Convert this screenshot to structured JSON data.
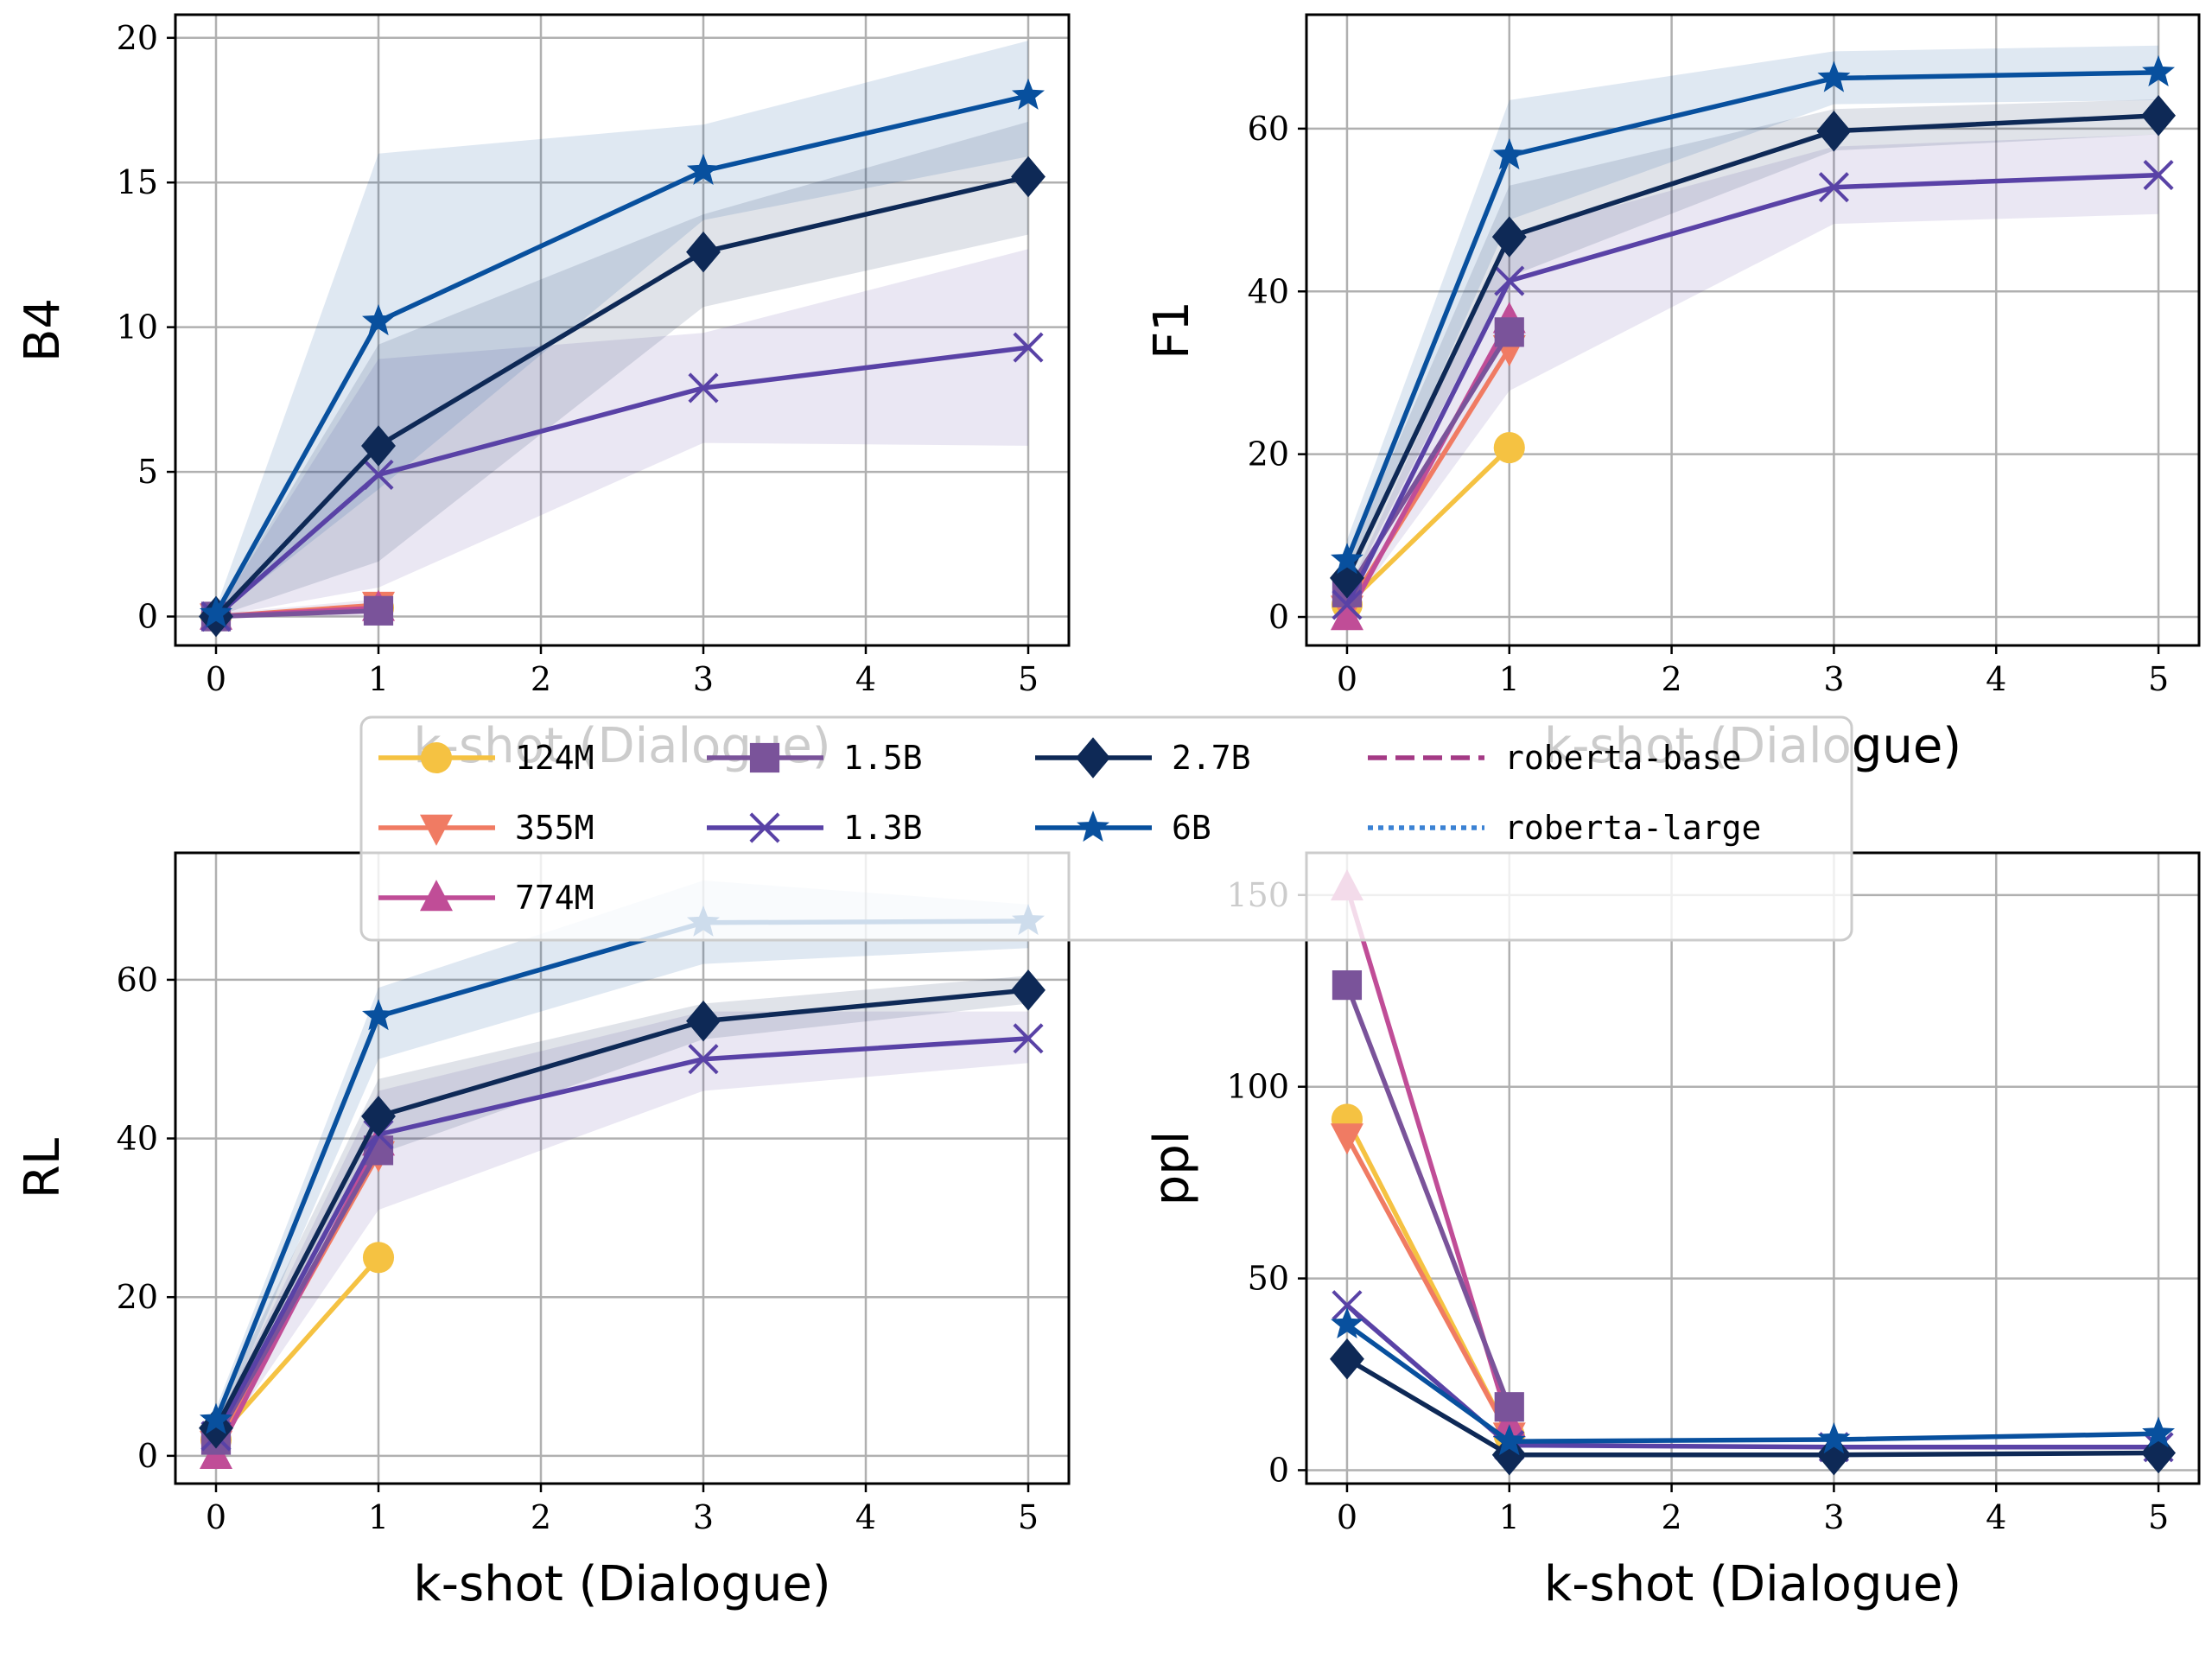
{
  "chart_data": [
    {
      "type": "line",
      "xlabel": "k-shot (Dialogue)",
      "ylabel": "B4",
      "x_ticks": [
        "0",
        "1",
        "2",
        "3",
        "4",
        "5"
      ],
      "y_ticks": [
        "0",
        "5",
        "10",
        "15",
        "20"
      ],
      "xlim": [
        -0.25,
        5.25
      ],
      "ylim": [
        -1,
        20.8
      ],
      "grid": true,
      "series": [
        {
          "name": "124M",
          "x": [
            0,
            1
          ],
          "y": [
            0.0,
            0.3
          ]
        },
        {
          "name": "355M",
          "x": [
            0,
            1
          ],
          "y": [
            0.0,
            0.4
          ]
        },
        {
          "name": "774M",
          "x": [
            0,
            1
          ],
          "y": [
            0.0,
            0.3
          ]
        },
        {
          "name": "1.5B",
          "x": [
            0,
            1
          ],
          "y": [
            0.0,
            0.2
          ],
          "band_lo": [
            0.0,
            0.0
          ],
          "band_hi": [
            0.1,
            0.6
          ]
        },
        {
          "name": "1.3B",
          "x": [
            0,
            1,
            3,
            5
          ],
          "y": [
            0.0,
            4.9,
            7.9,
            9.3
          ],
          "band_lo": [
            0.0,
            1.0,
            6.0,
            5.9
          ],
          "band_hi": [
            0.1,
            8.9,
            9.8,
            12.7
          ]
        },
        {
          "name": "2.7B",
          "x": [
            0,
            1,
            3,
            5
          ],
          "y": [
            0.0,
            5.9,
            12.6,
            15.2
          ],
          "band_lo": [
            0.0,
            1.9,
            10.7,
            13.2
          ],
          "band_hi": [
            0.1,
            9.4,
            13.9,
            17.1
          ]
        },
        {
          "name": "6B",
          "x": [
            0,
            1,
            3,
            5
          ],
          "y": [
            0.1,
            10.2,
            15.4,
            18.0
          ],
          "band_lo": [
            0.0,
            4.4,
            13.7,
            15.9
          ],
          "band_hi": [
            0.3,
            16.0,
            17.0,
            19.9
          ]
        }
      ]
    },
    {
      "type": "line",
      "xlabel": "k-shot (Dialogue)",
      "ylabel": "F1",
      "x_ticks": [
        "0",
        "1",
        "2",
        "3",
        "4",
        "5"
      ],
      "y_ticks": [
        "0",
        "20",
        "40",
        "60"
      ],
      "xlim": [
        -0.25,
        5.25
      ],
      "ylim": [
        -3.5,
        74
      ],
      "grid": true,
      "series": [
        {
          "name": "124M",
          "x": [
            0,
            1
          ],
          "y": [
            1.5,
            20.8
          ]
        },
        {
          "name": "355M",
          "x": [
            0,
            1
          ],
          "y": [
            1.0,
            33.0
          ]
        },
        {
          "name": "774M",
          "x": [
            0,
            1
          ],
          "y": [
            0.0,
            36.5
          ]
        },
        {
          "name": "1.5B",
          "x": [
            0,
            1
          ],
          "y": [
            3.0,
            35.0
          ]
        },
        {
          "name": "1.3B",
          "x": [
            0,
            1,
            3,
            5
          ],
          "y": [
            1.5,
            41.3,
            52.8,
            54.3
          ],
          "band_lo": [
            0.5,
            27.8,
            48.3,
            49.5
          ],
          "band_hi": [
            3.0,
            47.0,
            57.8,
            59.3
          ]
        },
        {
          "name": "2.7B",
          "x": [
            0,
            1,
            3,
            5
          ],
          "y": [
            4.8,
            46.7,
            59.7,
            61.6
          ],
          "band_lo": [
            2.8,
            41.8,
            57.3,
            59.3
          ],
          "band_hi": [
            7.0,
            53.0,
            62.4,
            63.6
          ]
        },
        {
          "name": "6B",
          "x": [
            0,
            1,
            3,
            5
          ],
          "y": [
            7.0,
            56.7,
            66.2,
            66.9
          ],
          "band_lo": [
            4.0,
            48.8,
            63.0,
            63.5
          ],
          "band_hi": [
            9.5,
            63.5,
            69.5,
            70.2
          ]
        }
      ]
    },
    {
      "type": "line",
      "xlabel": "k-shot (Dialogue)",
      "ylabel": "RL",
      "x_ticks": [
        "0",
        "1",
        "2",
        "3",
        "4",
        "5"
      ],
      "y_ticks": [
        "0",
        "20",
        "40",
        "60"
      ],
      "xlim": [
        -0.25,
        5.25
      ],
      "ylim": [
        -3.5,
        76
      ],
      "grid": true,
      "series": [
        {
          "name": "124M",
          "x": [
            0,
            1
          ],
          "y": [
            2.0,
            25.0
          ]
        },
        {
          "name": "355M",
          "x": [
            0,
            1
          ],
          "y": [
            1.5,
            38.0
          ]
        },
        {
          "name": "774M",
          "x": [
            0,
            1
          ],
          "y": [
            0.0,
            39.5
          ]
        },
        {
          "name": "1.5B",
          "x": [
            0,
            1
          ],
          "y": [
            2.0,
            38.5
          ]
        },
        {
          "name": "1.3B",
          "x": [
            0,
            1,
            3,
            5
          ],
          "y": [
            2.5,
            40.5,
            50.0,
            52.6
          ],
          "band_lo": [
            1.0,
            31.0,
            46.0,
            49.5
          ],
          "band_hi": [
            4.0,
            46.0,
            56.0,
            56.0
          ]
        },
        {
          "name": "2.7B",
          "x": [
            0,
            1,
            3,
            5
          ],
          "y": [
            3.5,
            42.8,
            54.8,
            58.7
          ],
          "band_lo": [
            2.0,
            38.0,
            52.5,
            57.0
          ],
          "band_hi": [
            5.5,
            47.5,
            57.0,
            60.5
          ]
        },
        {
          "name": "6B",
          "x": [
            0,
            1,
            3,
            5
          ],
          "y": [
            4.5,
            55.4,
            67.2,
            67.4
          ],
          "band_lo": [
            3.0,
            50.0,
            62.0,
            64.0
          ],
          "band_hi": [
            6.0,
            59.0,
            72.5,
            69.5
          ]
        }
      ]
    },
    {
      "type": "line",
      "xlabel": "k-shot (Dialogue)",
      "ylabel": "ppl",
      "x_ticks": [
        "0",
        "1",
        "2",
        "3",
        "4",
        "5"
      ],
      "y_ticks": [
        "0",
        "50",
        "100",
        "150"
      ],
      "xlim": [
        -0.25,
        5.25
      ],
      "ylim": [
        -3.5,
        161
      ],
      "grid": true,
      "series": [
        {
          "name": "124M",
          "x": [
            0,
            1
          ],
          "y": [
            91.5,
            9.0
          ]
        },
        {
          "name": "355M",
          "x": [
            0,
            1
          ],
          "y": [
            87.0,
            9.0
          ]
        },
        {
          "name": "774M",
          "x": [
            0,
            1
          ],
          "y": [
            152.0,
            12.0
          ]
        },
        {
          "name": "1.5B",
          "x": [
            0,
            1
          ],
          "y": [
            126.5,
            16.5
          ]
        },
        {
          "name": "1.3B",
          "x": [
            0,
            1,
            3,
            5
          ],
          "y": [
            43.0,
            6.5,
            6.0,
            6.0
          ]
        },
        {
          "name": "2.7B",
          "x": [
            0,
            1,
            3,
            5
          ],
          "y": [
            29.0,
            4.0,
            4.0,
            4.5
          ]
        },
        {
          "name": "6B",
          "x": [
            0,
            1,
            3,
            5
          ],
          "y": [
            38.0,
            7.5,
            8.0,
            9.5
          ]
        }
      ]
    }
  ],
  "legend": {
    "placement": "center",
    "items": [
      {
        "label": "124M",
        "color": "#f5c242",
        "marker": "circle",
        "dash": "solid"
      },
      {
        "label": "355M",
        "color": "#f07b63",
        "marker": "triangle-down",
        "dash": "solid"
      },
      {
        "label": "774M",
        "color": "#c04d97",
        "marker": "triangle-up",
        "dash": "solid"
      },
      {
        "label": "1.5B",
        "color": "#7a539a",
        "marker": "square",
        "dash": "solid"
      },
      {
        "label": "1.3B",
        "color": "#5942a6",
        "marker": "x",
        "dash": "solid"
      },
      {
        "label": "2.7B",
        "color": "#0e2956",
        "marker": "diamond",
        "dash": "solid"
      },
      {
        "label": "6B",
        "color": "#08509e",
        "marker": "star",
        "dash": "solid"
      },
      {
        "label": "roberta-base",
        "color": "#a43a85",
        "marker": "none",
        "dash": "dashed"
      },
      {
        "label": "roberta-large",
        "color": "#3b82d4",
        "marker": "none",
        "dash": "dotted"
      }
    ]
  }
}
